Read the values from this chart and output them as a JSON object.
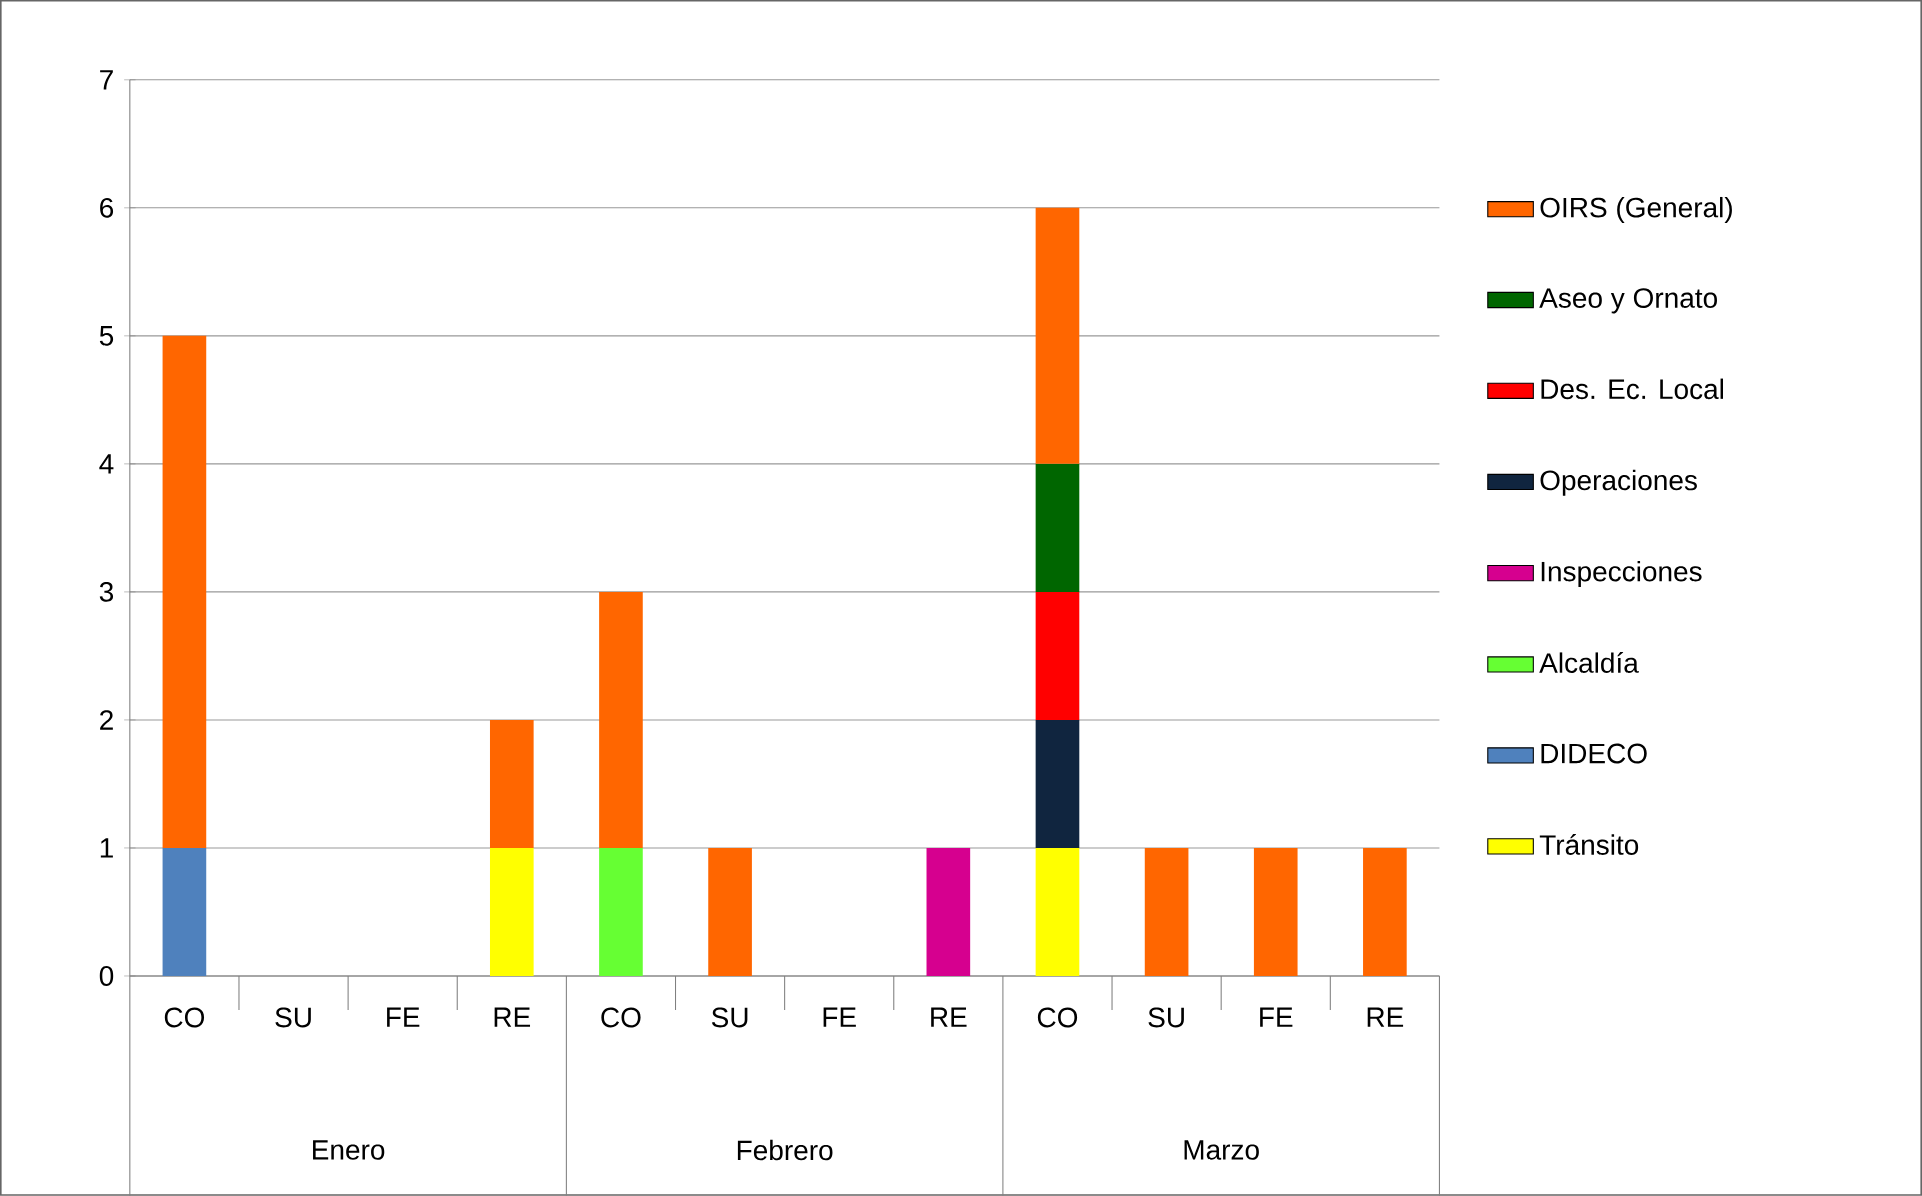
{
  "chart_data": {
    "type": "bar",
    "stacked": true,
    "categories": [
      "CO",
      "SU",
      "FE",
      "RE",
      "CO",
      "SU",
      "FE",
      "RE",
      "CO",
      "SU",
      "FE",
      "RE"
    ],
    "annotations": [
      "Enero",
      "Febrero",
      "Marzo"
    ],
    "series": [
      {
        "name": "Tránsito",
        "color": "#ffff00",
        "values": [
          null,
          null,
          null,
          1,
          null,
          null,
          null,
          null,
          1,
          null,
          null,
          null
        ]
      },
      {
        "name": "DIDECO",
        "color": "#4f81bd",
        "values": [
          1,
          null,
          null,
          null,
          null,
          null,
          null,
          null,
          null,
          null,
          null,
          null
        ]
      },
      {
        "name": "Alcaldía",
        "color": "#66ff33",
        "values": [
          null,
          null,
          null,
          null,
          1,
          null,
          null,
          null,
          null,
          null,
          null,
          null
        ]
      },
      {
        "name": "Inspecciones",
        "color": "#d6008f",
        "values": [
          null,
          null,
          null,
          null,
          null,
          null,
          null,
          1,
          null,
          null,
          null,
          null
        ]
      },
      {
        "name": "Operaciones",
        "color": "#10253f",
        "values": [
          null,
          null,
          null,
          null,
          null,
          null,
          null,
          null,
          1,
          null,
          null,
          null
        ]
      },
      {
        "name": "Des. Ec. Local",
        "color": "#ff0000",
        "values": [
          null,
          null,
          null,
          null,
          null,
          null,
          null,
          null,
          1,
          null,
          null,
          null
        ]
      },
      {
        "name": "Aseo y Ornato",
        "color": "#006600",
        "values": [
          null,
          null,
          null,
          null,
          null,
          null,
          null,
          null,
          1,
          null,
          null,
          null
        ]
      },
      {
        "name": "OIRS (General)",
        "color": "#ff6600",
        "values": [
          4,
          null,
          null,
          1,
          2,
          1,
          null,
          null,
          2,
          1,
          1,
          1
        ]
      }
    ],
    "ylim": [
      0,
      7
    ],
    "yticks": [
      0,
      1,
      2,
      3,
      4,
      5,
      6,
      7
    ],
    "grid": "y",
    "legend": "right"
  }
}
